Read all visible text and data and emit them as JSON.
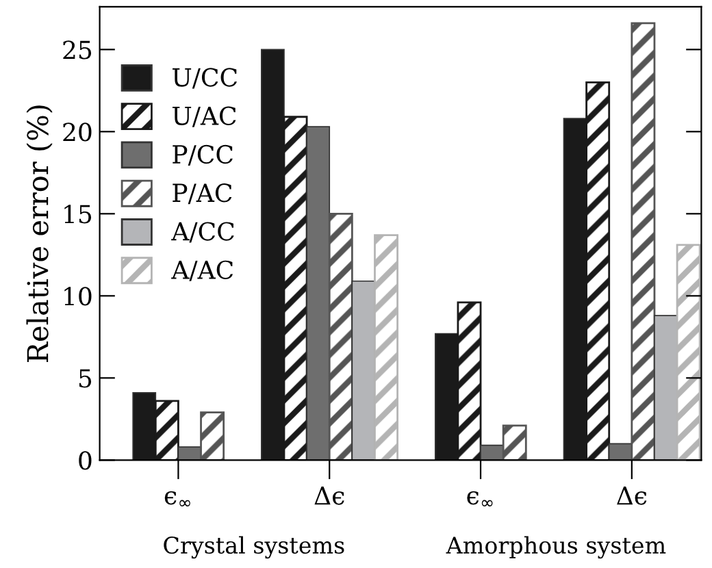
{
  "chart_data": {
    "type": "bar",
    "ylabel": "Relative error (%)",
    "categories": [
      "ϵ$_{∞}$",
      "Δϵ",
      "ϵ$_{∞}$",
      "Δϵ"
    ],
    "series": [
      {
        "name": "U/CC",
        "color": "#1a1a1a",
        "values": [
          4.1,
          25.0,
          7.7,
          20.8
        ]
      },
      {
        "name": "U/AC",
        "color": "#1a1a1a",
        "values": [
          3.6,
          20.9,
          9.6,
          23.0
        ]
      },
      {
        "name": "P/CC",
        "color": "#6e6e6e",
        "values": [
          0.8,
          20.3,
          0.9,
          1.0
        ]
      },
      {
        "name": "P/AC",
        "color": "#555555",
        "values": [
          2.9,
          15.0,
          2.1,
          26.6
        ]
      },
      {
        "name": "A/CC",
        "color": "#b4b5b8",
        "values": [
          null,
          10.9,
          null,
          8.8
        ]
      },
      {
        "name": "A/AC",
        "color": "#b4b4b4",
        "values": [
          null,
          13.7,
          null,
          13.1
        ]
      }
    ],
    "annotations": [
      "Crystal systems",
      "Amorphous system"
    ],
    "ylim": [
      0,
      27.6
    ],
    "yticks": [
      0,
      5,
      10,
      15,
      20,
      25
    ],
    "grid": false,
    "legend": "top left"
  }
}
